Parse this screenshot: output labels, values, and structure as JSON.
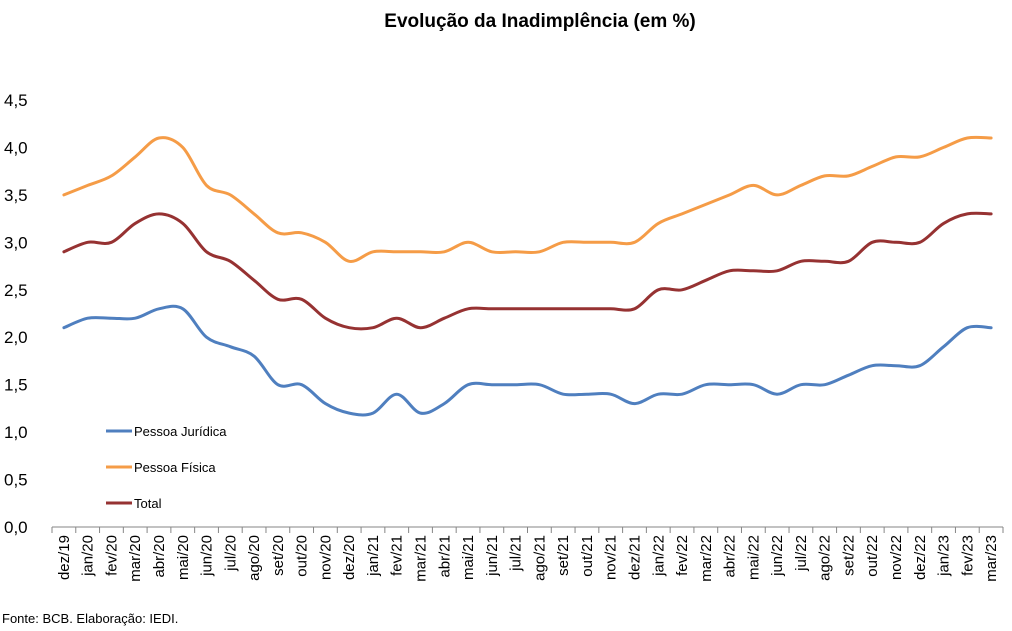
{
  "chart_data": {
    "type": "line",
    "title": "Evolução da Inadimplência (em %)",
    "xlabel": "",
    "ylabel": "",
    "ylim": [
      0,
      4.5
    ],
    "yticks": [
      "0,0",
      "0,5",
      "1,0",
      "1,5",
      "2,0",
      "2,5",
      "3,0",
      "3,5",
      "4,0",
      "4,5"
    ],
    "grid": false,
    "legend_position": "bottom-left",
    "categories": [
      "dez/19",
      "jan/20",
      "fev/20",
      "mar/20",
      "abr/20",
      "mai/20",
      "jun/20",
      "jul/20",
      "ago/20",
      "set/20",
      "out/20",
      "nov/20",
      "dez/20",
      "jan/21",
      "fev/21",
      "mar/21",
      "abr/21",
      "mai/21",
      "jun/21",
      "jul/21",
      "ago/21",
      "set/21",
      "out/21",
      "nov/21",
      "dez/21",
      "jan/22",
      "fev/22",
      "mar/22",
      "abr/22",
      "mai/22",
      "jun/22",
      "jul/22",
      "ago/22",
      "set/22",
      "out/22",
      "nov/22",
      "dez/22",
      "jan/23",
      "fev/23",
      "mar/23"
    ],
    "series": [
      {
        "name": "Pessoa Jurídica",
        "color": "#4f7fbf",
        "values": [
          2.1,
          2.2,
          2.2,
          2.2,
          2.3,
          2.3,
          2.0,
          1.9,
          1.8,
          1.5,
          1.5,
          1.3,
          1.2,
          1.2,
          1.4,
          1.2,
          1.3,
          1.5,
          1.5,
          1.5,
          1.5,
          1.4,
          1.4,
          1.4,
          1.3,
          1.4,
          1.4,
          1.5,
          1.5,
          1.5,
          1.4,
          1.5,
          1.5,
          1.6,
          1.7,
          1.7,
          1.7,
          1.9,
          2.1,
          2.1
        ]
      },
      {
        "name": "Pessoa Física",
        "color": "#f59c47",
        "values": [
          3.5,
          3.6,
          3.7,
          3.9,
          4.1,
          4.0,
          3.6,
          3.5,
          3.3,
          3.1,
          3.1,
          3.0,
          2.8,
          2.9,
          2.9,
          2.9,
          2.9,
          3.0,
          2.9,
          2.9,
          2.9,
          3.0,
          3.0,
          3.0,
          3.0,
          3.2,
          3.3,
          3.4,
          3.5,
          3.6,
          3.5,
          3.6,
          3.7,
          3.7,
          3.8,
          3.9,
          3.9,
          4.0,
          4.1,
          4.1
        ]
      },
      {
        "name": "Total",
        "color": "#963232",
        "values": [
          2.9,
          3.0,
          3.0,
          3.2,
          3.3,
          3.2,
          2.9,
          2.8,
          2.6,
          2.4,
          2.4,
          2.2,
          2.1,
          2.1,
          2.2,
          2.1,
          2.2,
          2.3,
          2.3,
          2.3,
          2.3,
          2.3,
          2.3,
          2.3,
          2.3,
          2.5,
          2.5,
          2.6,
          2.7,
          2.7,
          2.7,
          2.8,
          2.8,
          2.8,
          3.0,
          3.0,
          3.0,
          3.2,
          3.3,
          3.3
        ]
      }
    ]
  },
  "source_note": "Fonte: BCB. Elaboração: IEDI."
}
